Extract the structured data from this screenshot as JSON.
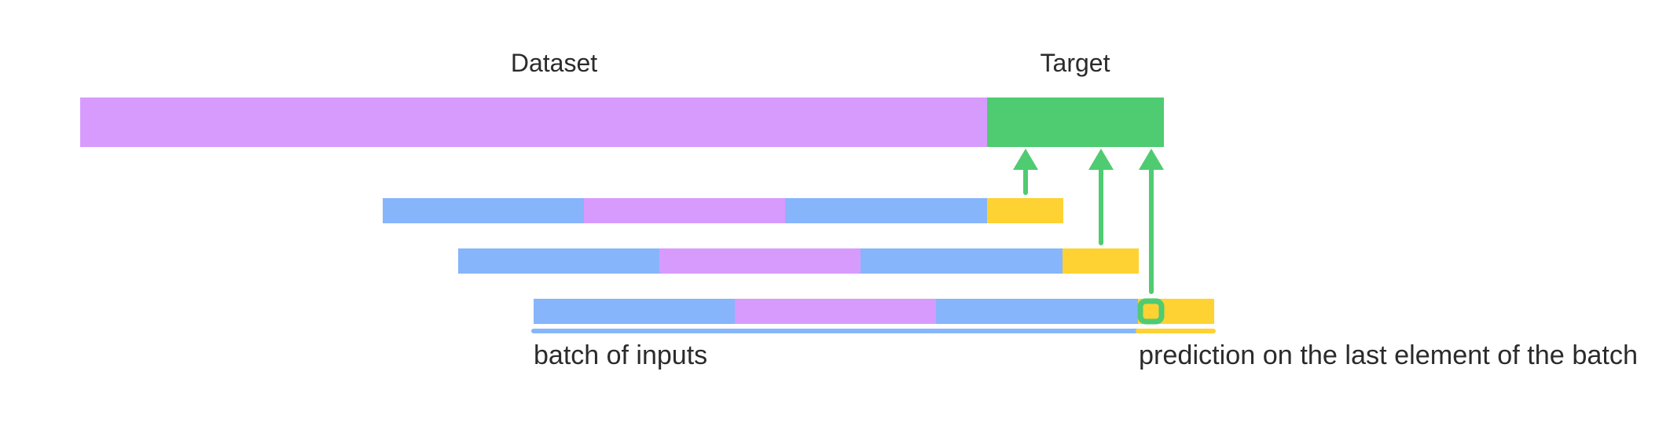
{
  "labels": {
    "dataset": "Dataset",
    "target": "Target",
    "batch_of_inputs": "batch of inputs",
    "prediction_note": "prediction on the last element of the batch"
  },
  "colors": {
    "dataset": "#d79bfd",
    "target": "#4fcb71",
    "blue": "#87b5fb",
    "purple": "#d79bfd",
    "yellow": "#fed232",
    "arrow": "#4fcb71",
    "text": "#2b2b2b"
  }
}
